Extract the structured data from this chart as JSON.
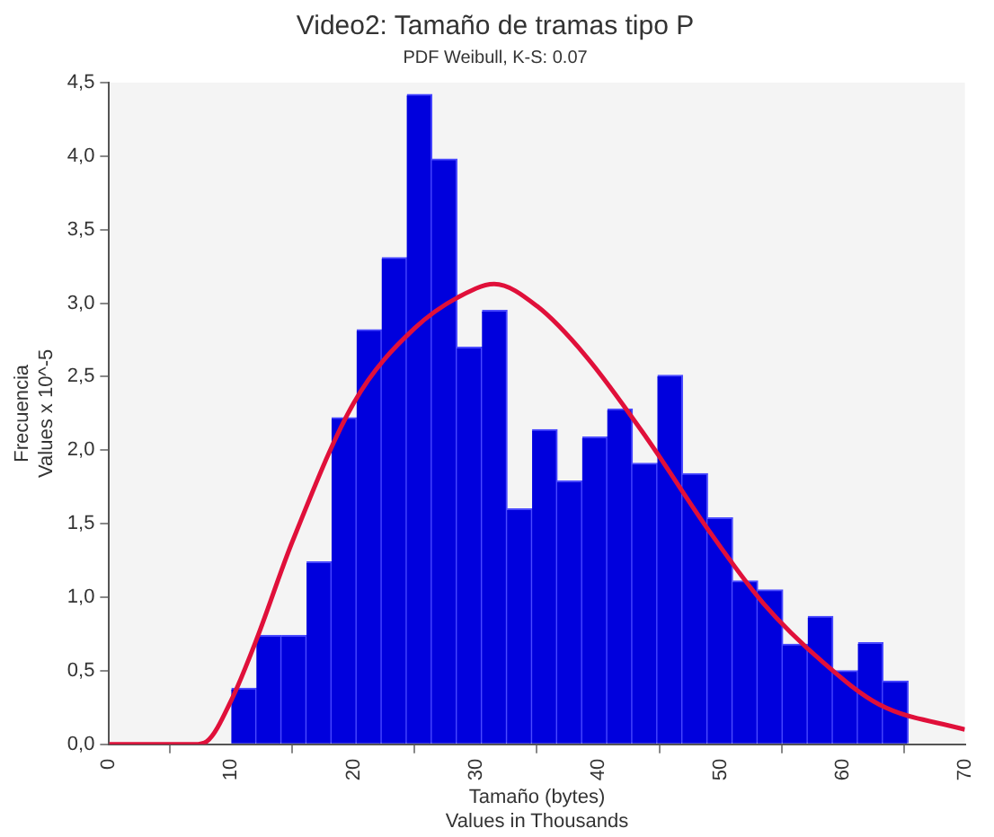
{
  "chart_data": {
    "type": "histogram",
    "title": "Video2: Tamaño de tramas tipo P",
    "subtitle": "PDF Weibull, K-S: 0.07",
    "xlabel": "Tamaño (bytes)",
    "ylabel": "Frecuencia",
    "annotations": [
      "Values in Thousands",
      "Values x 10^-5"
    ],
    "series": [
      {
        "color": "#0000dd",
        "bins": [
          10,
          12.05,
          14.1,
          16.15,
          18.2,
          20.25,
          22.3,
          24.35,
          26.4,
          28.45,
          30.5,
          32.55,
          34.6,
          36.65,
          38.7,
          40.75,
          42.8,
          44.85,
          46.9,
          48.95,
          51,
          53.05,
          55.1,
          57.15,
          59.2,
          61.25,
          63.3,
          65.35
        ],
        "values": [
          0.38,
          0.74,
          0.74,
          1.24,
          2.22,
          2.82,
          3.31,
          4.42,
          3.98,
          2.7,
          2.95,
          1.6,
          2.14,
          1.79,
          2.09,
          2.28,
          1.91,
          2.51,
          1.84,
          1.54,
          1.11,
          1.05,
          0.68,
          0.87,
          0.5,
          0.69,
          0.43
        ]
      },
      {
        "type": "line",
        "color": "#e0103a",
        "x": [
          0,
          7,
          8,
          10,
          12,
          15,
          20,
          25,
          30,
          31.5,
          35,
          39,
          44,
          49,
          53.5,
          58.5,
          63,
          70
        ],
        "values": [
          0,
          0,
          0.02,
          0.3,
          0.7,
          1.38,
          2.32,
          2.83,
          3.1,
          3.13,
          2.98,
          2.64,
          2.08,
          1.46,
          0.96,
          0.55,
          0.27,
          0.1
        ]
      }
    ],
    "xlim": [
      0,
      70
    ],
    "xticks": [
      0,
      10,
      20,
      30,
      40,
      50,
      60,
      70
    ],
    "ylim": [
      0,
      4.5
    ],
    "yticks": [
      {
        "value": 0,
        "label": "0,0"
      },
      {
        "value": 0.5,
        "label": "0,5"
      },
      {
        "value": 1,
        "label": "1,0"
      },
      {
        "value": 1.5,
        "label": "1,5"
      },
      {
        "value": 2,
        "label": "2,0"
      },
      {
        "value": 2.5,
        "label": "2,5"
      },
      {
        "value": 3,
        "label": "3,0"
      },
      {
        "value": 3.5,
        "label": "3,5"
      },
      {
        "value": 4,
        "label": "4,0"
      },
      {
        "value": 4.5,
        "label": "4,5"
      }
    ],
    "grid": false,
    "legend": false,
    "marker": "none"
  }
}
